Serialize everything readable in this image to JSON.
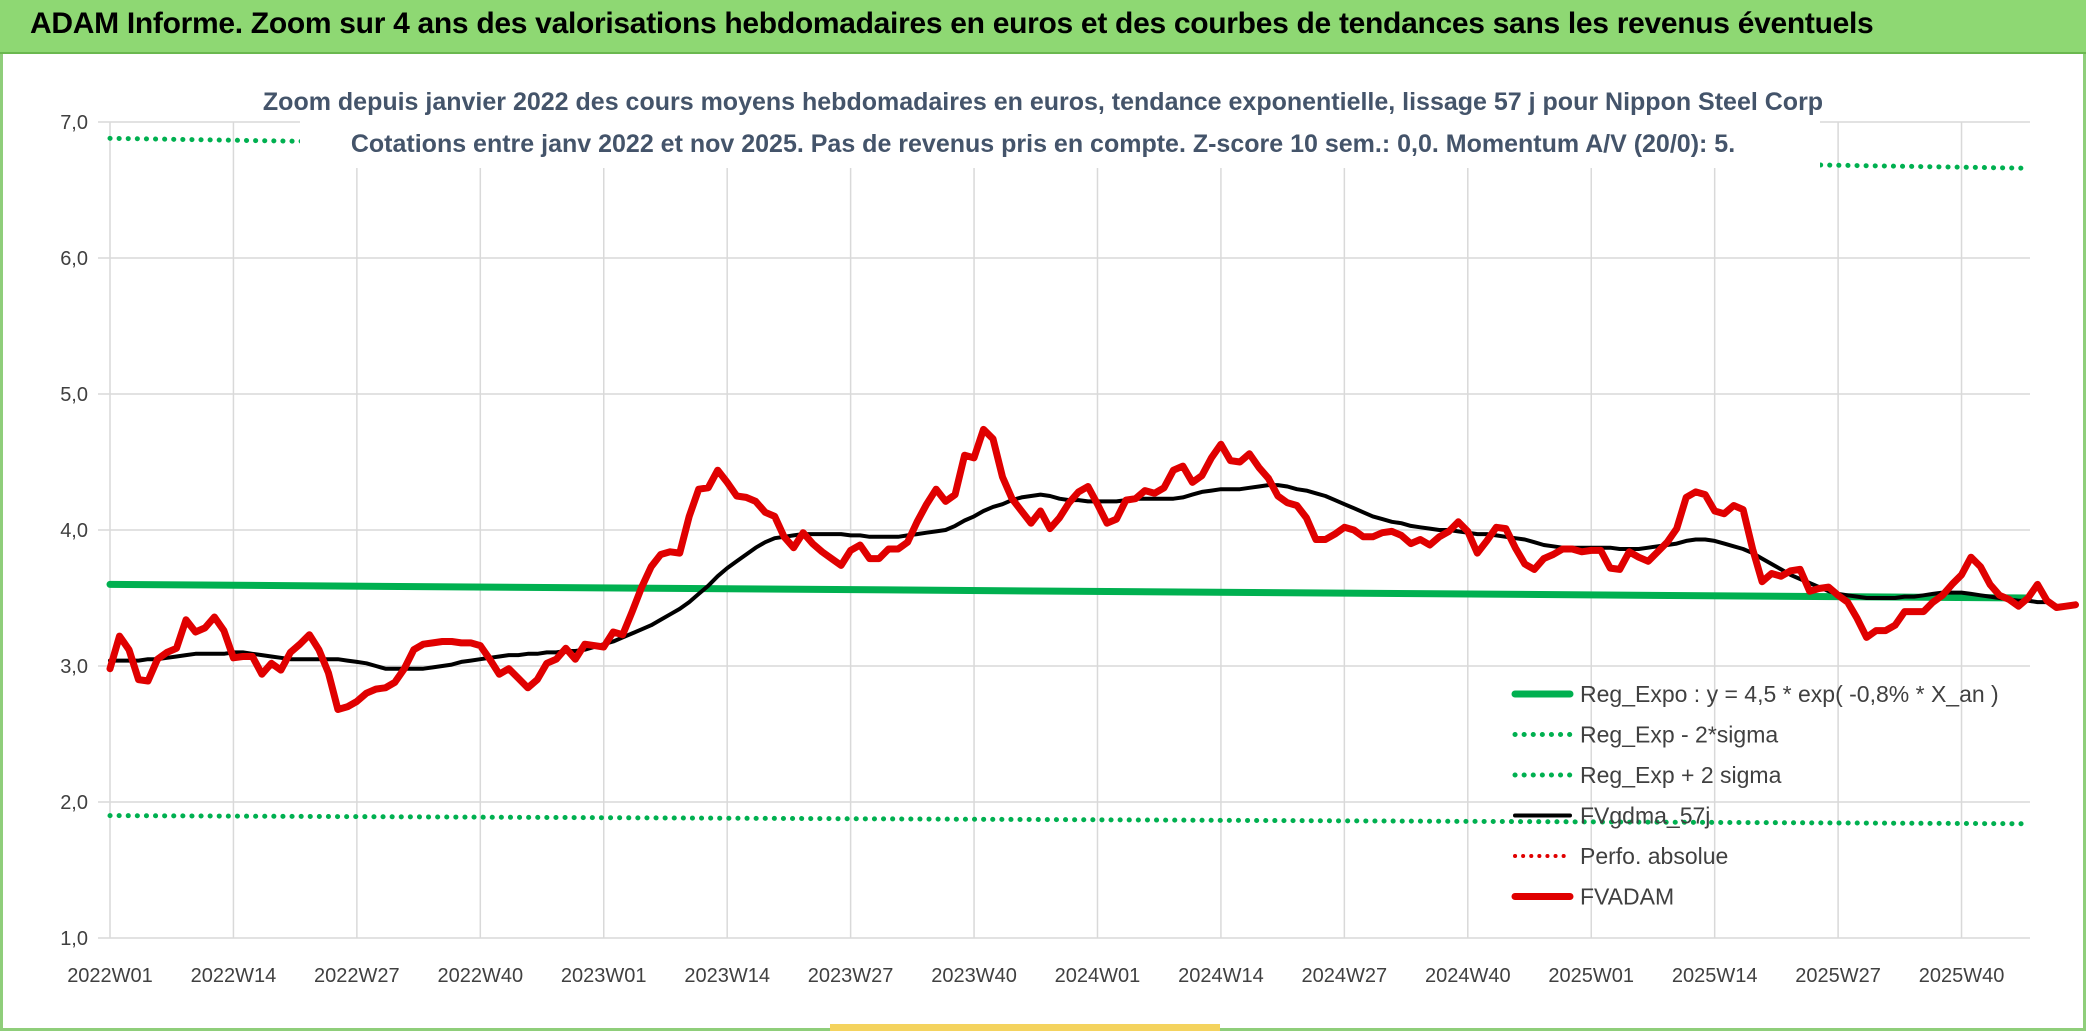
{
  "header": {
    "title": "ADAM Informe. Zoom sur 4 ans des valorisations hebdomadaires en euros et des courbes de tendances sans les revenus éventuels"
  },
  "colors": {
    "header_bg": "#8ed873",
    "reg_expo": "#00b050",
    "fvgdma": "#000000",
    "perfo": "#e00000",
    "fvadam": "#e00000",
    "grid": "#d9d9d9"
  },
  "chart_data": {
    "type": "line",
    "subtitle_lines": [
      "Zoom depuis janvier 2022 des cours moyens hebdomadaires en euros, tendance exponentielle, lissage 57 j pour Nippon Steel Corp",
      "Cotations entre janv 2022 et nov 2025. Pas de revenus pris en compte. Z-score 10 sem.: 0,0. Momentum A/V (20/0): 5."
    ],
    "ylim": [
      1.0,
      7.0
    ],
    "yticks": [
      "1,0",
      "2,0",
      "3,0",
      "4,0",
      "5,0",
      "6,0",
      "7,0"
    ],
    "xticks": [
      "2022W01",
      "2022W14",
      "2022W27",
      "2022W40",
      "2023W01",
      "2023W14",
      "2023W27",
      "2023W40",
      "2024W01",
      "2024W14",
      "2024W27",
      "2024W40",
      "2025W01",
      "2025W14",
      "2025W27",
      "2025W40"
    ],
    "x_count": 203,
    "legend_position": "lower-right",
    "grid": true,
    "series": [
      {
        "name": "Reg_Expo : y = 4,5 * exp( -0,8% *  X_an )",
        "style": "solid-thick",
        "color": "#00b050",
        "start": 3.6,
        "end": 3.5
      },
      {
        "name": "Reg_Exp - 2*sigma",
        "style": "dotted",
        "color": "#00b050",
        "start": 1.9,
        "end": 1.84
      },
      {
        "name": "Reg_Exp + 2 sigma",
        "style": "dotted",
        "color": "#00b050",
        "start": 6.88,
        "end": 6.66
      },
      {
        "name": "FVgdma_57j",
        "style": "solid",
        "color": "#000000",
        "values": [
          3.04,
          3.04,
          3.04,
          3.04,
          3.05,
          3.05,
          3.06,
          3.07,
          3.08,
          3.09,
          3.09,
          3.09,
          3.09,
          3.1,
          3.1,
          3.09,
          3.08,
          3.07,
          3.06,
          3.05,
          3.05,
          3.05,
          3.05,
          3.05,
          3.05,
          3.04,
          3.03,
          3.02,
          3.0,
          2.98,
          2.98,
          2.98,
          2.98,
          2.98,
          2.99,
          3.0,
          3.01,
          3.03,
          3.04,
          3.05,
          3.06,
          3.07,
          3.08,
          3.08,
          3.09,
          3.09,
          3.1,
          3.1,
          3.11,
          3.11,
          3.12,
          3.14,
          3.16,
          3.18,
          3.21,
          3.24,
          3.27,
          3.3,
          3.34,
          3.38,
          3.42,
          3.47,
          3.53,
          3.59,
          3.66,
          3.72,
          3.77,
          3.82,
          3.87,
          3.91,
          3.94,
          3.95,
          3.96,
          3.97,
          3.97,
          3.97,
          3.97,
          3.97,
          3.96,
          3.96,
          3.95,
          3.95,
          3.95,
          3.95,
          3.96,
          3.97,
          3.98,
          3.99,
          4.0,
          4.03,
          4.07,
          4.1,
          4.14,
          4.17,
          4.19,
          4.22,
          4.24,
          4.25,
          4.26,
          4.25,
          4.23,
          4.22,
          4.22,
          4.21,
          4.21,
          4.21,
          4.21,
          4.22,
          4.23,
          4.23,
          4.23,
          4.23,
          4.23,
          4.24,
          4.26,
          4.28,
          4.29,
          4.3,
          4.3,
          4.3,
          4.31,
          4.32,
          4.33,
          4.33,
          4.32,
          4.3,
          4.29,
          4.27,
          4.25,
          4.22,
          4.19,
          4.16,
          4.13,
          4.1,
          4.08,
          4.06,
          4.05,
          4.03,
          4.02,
          4.01,
          4.0,
          4.0,
          3.99,
          3.98,
          3.97,
          3.97,
          3.96,
          3.95,
          3.94,
          3.93,
          3.91,
          3.89,
          3.88,
          3.87,
          3.87,
          3.87,
          3.87,
          3.87,
          3.87,
          3.86,
          3.86,
          3.86,
          3.87,
          3.88,
          3.89,
          3.9,
          3.92,
          3.93,
          3.93,
          3.92,
          3.9,
          3.88,
          3.86,
          3.83,
          3.79,
          3.75,
          3.71,
          3.67,
          3.64,
          3.61,
          3.58,
          3.55,
          3.53,
          3.52,
          3.51,
          3.5,
          3.5,
          3.5,
          3.5,
          3.51,
          3.51,
          3.52,
          3.53,
          3.54,
          3.54,
          3.54,
          3.53,
          3.52,
          3.51,
          3.5,
          3.49,
          3.48,
          3.48,
          3.47,
          3.47
        ]
      },
      {
        "name": "Perfo. absolue",
        "style": "dotted",
        "color": "#e00000"
      },
      {
        "name": "FVADAM",
        "style": "solid-thick",
        "color": "#e00000",
        "values": [
          2.98,
          3.22,
          3.12,
          2.9,
          2.89,
          3.05,
          3.1,
          3.13,
          3.34,
          3.25,
          3.28,
          3.36,
          3.26,
          3.06,
          3.07,
          3.07,
          2.94,
          3.02,
          2.97,
          3.1,
          3.16,
          3.23,
          3.12,
          2.95,
          2.68,
          2.7,
          2.74,
          2.8,
          2.83,
          2.84,
          2.88,
          2.98,
          3.12,
          3.16,
          3.17,
          3.18,
          3.18,
          3.17,
          3.17,
          3.15,
          3.05,
          2.94,
          2.98,
          2.91,
          2.84,
          2.9,
          3.02,
          3.05,
          3.13,
          3.05,
          3.16,
          3.15,
          3.14,
          3.25,
          3.23,
          3.4,
          3.58,
          3.73,
          3.82,
          3.84,
          3.83,
          4.1,
          4.3,
          4.31,
          4.44,
          4.35,
          4.25,
          4.24,
          4.21,
          4.13,
          4.1,
          3.95,
          3.87,
          3.98,
          3.9,
          3.84,
          3.79,
          3.74,
          3.85,
          3.89,
          3.79,
          3.79,
          3.86,
          3.86,
          3.91,
          4.06,
          4.19,
          4.3,
          4.21,
          4.26,
          4.55,
          4.53,
          4.74,
          4.67,
          4.39,
          4.23,
          4.14,
          4.05,
          4.14,
          4.01,
          4.09,
          4.2,
          4.28,
          4.32,
          4.19,
          4.05,
          4.08,
          4.22,
          4.23,
          4.29,
          4.27,
          4.31,
          4.44,
          4.47,
          4.35,
          4.4,
          4.53,
          4.63,
          4.51,
          4.5,
          4.56,
          4.46,
          4.38,
          4.25,
          4.2,
          4.18,
          4.09,
          3.93,
          3.93,
          3.97,
          4.02,
          4.0,
          3.95,
          3.95,
          3.98,
          3.99,
          3.96,
          3.9,
          3.93,
          3.89,
          3.95,
          3.99,
          4.06,
          3.99,
          3.83,
          3.92,
          4.02,
          4.01,
          3.87,
          3.75,
          3.71,
          3.79,
          3.82,
          3.86,
          3.86,
          3.84,
          3.85,
          3.85,
          3.72,
          3.71,
          3.84,
          3.8,
          3.77,
          3.84,
          3.91,
          4.01,
          4.24,
          4.28,
          4.26,
          4.14,
          4.12,
          4.18,
          4.15,
          3.86,
          3.62,
          3.68,
          3.66,
          3.7,
          3.71,
          3.55,
          3.57,
          3.58,
          3.52,
          3.47,
          3.35,
          3.21,
          3.26,
          3.26,
          3.3,
          3.4,
          3.4,
          3.4,
          3.47,
          3.52,
          3.6,
          3.67,
          3.8,
          3.73,
          3.6,
          3.52,
          3.49,
          3.44,
          3.5,
          3.6,
          3.48,
          3.43,
          3.44,
          3.45
        ]
      }
    ]
  }
}
